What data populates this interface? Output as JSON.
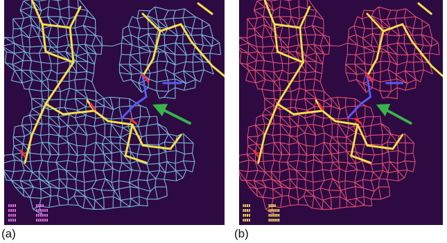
{
  "figure": {
    "panels": [
      {
        "id": "a",
        "label": "(a)",
        "map_color": "#7fd0f0",
        "hud_color": "#e070e0"
      },
      {
        "id": "b",
        "label": "(b)",
        "map_color": "#ff5a7a",
        "hud_color": "#ffe060"
      }
    ],
    "background_color": "#2e0a42",
    "model_bond_color": "#f4e04a",
    "highlight_bond_color": "#5a5aff",
    "oxygen_color": "#ff3030",
    "arrow_color": "#37b54a"
  }
}
